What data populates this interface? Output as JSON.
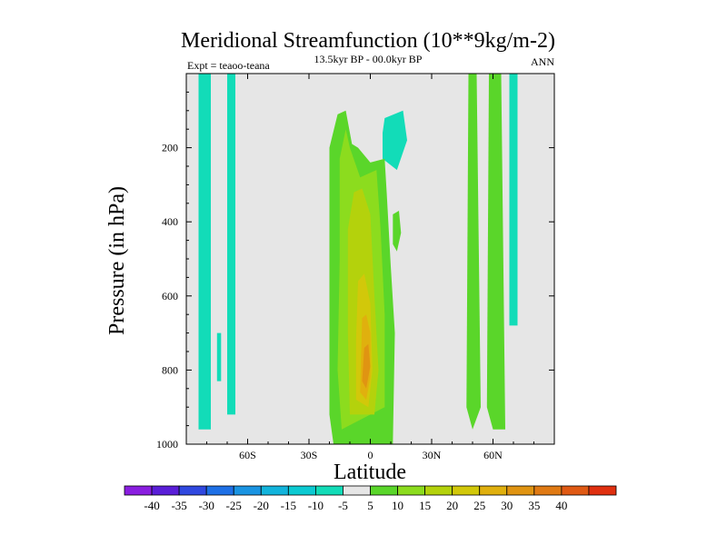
{
  "chart_data": {
    "type": "contour",
    "title": "Meridional Streamfunction (10**9kg/m-2)",
    "subtitle": "13.5kyr BP - 00.0kyr BP",
    "left_label": "Expt = teaoo-teana",
    "right_label": "ANN",
    "xlabel": "Latitude",
    "ylabel": "Pressure (in hPa)",
    "xlim": [
      -90,
      90
    ],
    "ylim": [
      0,
      1000
    ],
    "y_inverted": true,
    "x_ticks": [
      {
        "value": -60,
        "label": "60S"
      },
      {
        "value": -30,
        "label": "30S"
      },
      {
        "value": 0,
        "label": "0"
      },
      {
        "value": 30,
        "label": "30N"
      },
      {
        "value": 60,
        "label": "60N"
      }
    ],
    "y_ticks": [
      {
        "value": 200,
        "label": "200"
      },
      {
        "value": 400,
        "label": "400"
      },
      {
        "value": 600,
        "label": "600"
      },
      {
        "value": 800,
        "label": "800"
      },
      {
        "value": 1000,
        "label": "1000"
      }
    ],
    "colorbar": {
      "colors": [
        "#8a1ee0",
        "#5a1ed8",
        "#3048e0",
        "#1e70e6",
        "#1a94e2",
        "#12b4dc",
        "#0ccad2",
        "#12dcb8",
        "#e6e6e6",
        "#5ad62a",
        "#8cdc1e",
        "#b4d20c",
        "#d2c80a",
        "#e0b00e",
        "#e09412",
        "#e07a14",
        "#e05a14",
        "#e03010"
      ],
      "levels": [
        -40,
        -35,
        -30,
        -25,
        -20,
        -15,
        -10,
        -5,
        5,
        10,
        15,
        20,
        25,
        30,
        35,
        40
      ],
      "labels": [
        "-40",
        "-35",
        "-30",
        "-25",
        "-20",
        "-15",
        "-10",
        "-5",
        "5",
        "10",
        "15",
        "20",
        "25",
        "30",
        "35",
        "40"
      ]
    },
    "regions": [
      {
        "name": "sh-polar-band",
        "value": -5,
        "color": "#12dcb8",
        "points": [
          [
            -84,
            0
          ],
          [
            -78,
            0
          ],
          [
            -78,
            960
          ],
          [
            -84,
            960
          ]
        ]
      },
      {
        "name": "sh-midlat-band",
        "value": -5,
        "color": "#12dcb8",
        "points": [
          [
            -70,
            0
          ],
          [
            -66,
            0
          ],
          [
            -66,
            920
          ],
          [
            -70,
            920
          ]
        ]
      },
      {
        "name": "sh-thin-band",
        "value": -5,
        "color": "#12dcb8",
        "points": [
          [
            -75,
            700
          ],
          [
            -73,
            700
          ],
          [
            -73,
            830
          ],
          [
            -75,
            830
          ]
        ]
      },
      {
        "name": "nh-upper-negative",
        "value": -5,
        "color": "#12dcb8",
        "points": [
          [
            7,
            120
          ],
          [
            16,
            100
          ],
          [
            18,
            180
          ],
          [
            13,
            260
          ],
          [
            6,
            230
          ],
          [
            6,
            160
          ]
        ]
      },
      {
        "name": "nh-polar-band",
        "value": -5,
        "color": "#12dcb8",
        "points": [
          [
            68,
            0
          ],
          [
            72,
            0
          ],
          [
            72,
            680
          ],
          [
            68,
            680
          ]
        ]
      },
      {
        "name": "nh-small-mid",
        "value": 5,
        "color": "#5ad62a",
        "points": [
          [
            11,
            380
          ],
          [
            14,
            370
          ],
          [
            15,
            430
          ],
          [
            13,
            480
          ],
          [
            11,
            460
          ]
        ]
      },
      {
        "name": "nh-band-a",
        "value": 5,
        "color": "#5ad62a",
        "points": [
          [
            48,
            0
          ],
          [
            52,
            0
          ],
          [
            54,
            900
          ],
          [
            50,
            960
          ],
          [
            47,
            900
          ]
        ]
      },
      {
        "name": "nh-band-b",
        "value": 5,
        "color": "#5ad62a",
        "points": [
          [
            58,
            0
          ],
          [
            64,
            0
          ],
          [
            66,
            960
          ],
          [
            60,
            960
          ],
          [
            57,
            900
          ]
        ]
      },
      {
        "name": "tropical-cell",
        "value": 5,
        "color": "#5ad62a",
        "points": [
          [
            -20,
            200
          ],
          [
            -16,
            110
          ],
          [
            -12,
            100
          ],
          [
            -9,
            190
          ],
          [
            -6,
            200
          ],
          [
            0,
            240
          ],
          [
            7,
            230
          ],
          [
            8,
            320
          ],
          [
            10,
            520
          ],
          [
            12,
            700
          ],
          [
            11,
            1000
          ],
          [
            -18,
            1000
          ],
          [
            -20,
            920
          ],
          [
            -20,
            700
          ]
        ]
      },
      {
        "name": "tropical-cell-10",
        "value": 10,
        "color": "#8cdc1e",
        "points": [
          [
            -15,
            230
          ],
          [
            -12,
            150
          ],
          [
            -10,
            200
          ],
          [
            -5,
            280
          ],
          [
            3,
            260
          ],
          [
            5,
            420
          ],
          [
            7,
            650
          ],
          [
            7,
            900
          ],
          [
            -14,
            960
          ],
          [
            -16,
            800
          ],
          [
            -15,
            500
          ]
        ]
      },
      {
        "name": "tropical-cell-15",
        "value": 15,
        "color": "#b4d20c",
        "points": [
          [
            -11,
            420
          ],
          [
            -8,
            320
          ],
          [
            -4,
            310
          ],
          [
            0,
            380
          ],
          [
            2,
            600
          ],
          [
            4,
            800
          ],
          [
            2,
            920
          ],
          [
            -10,
            920
          ],
          [
            -11,
            700
          ]
        ]
      },
      {
        "name": "tropical-cell-20",
        "value": 20,
        "color": "#d2c80a",
        "points": [
          [
            -6,
            560
          ],
          [
            -3,
            540
          ],
          [
            0,
            620
          ],
          [
            1,
            800
          ],
          [
            -1,
            900
          ],
          [
            -7,
            880
          ],
          [
            -7,
            720
          ]
        ]
      },
      {
        "name": "tropical-cell-25",
        "value": 25,
        "color": "#e0b00e",
        "points": [
          [
            -4,
            660
          ],
          [
            -2,
            650
          ],
          [
            0,
            700
          ],
          [
            0,
            820
          ],
          [
            -2,
            880
          ],
          [
            -5,
            860
          ]
        ]
      },
      {
        "name": "tropical-cell-30",
        "value": 30,
        "color": "#e09412",
        "points": [
          [
            -3,
            740
          ],
          [
            -1,
            730
          ],
          [
            0,
            790
          ],
          [
            -2,
            850
          ],
          [
            -4,
            830
          ]
        ]
      }
    ]
  }
}
